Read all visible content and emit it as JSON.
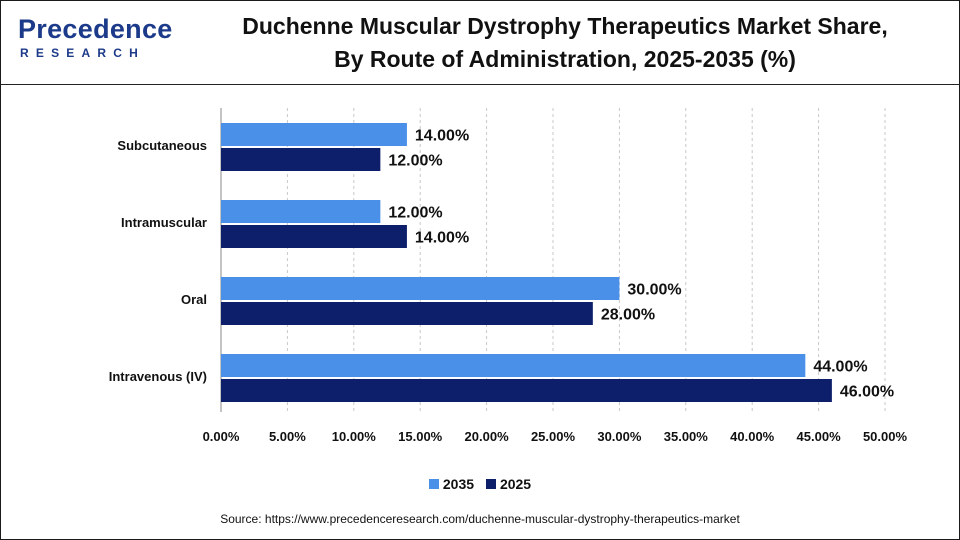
{
  "brand": {
    "name": "Precedence",
    "sub": "RESEARCH"
  },
  "title_line1": "Duchenne Muscular Dystrophy Therapeutics Market Share,",
  "title_line2": "By Route of Administration, 2025-2035 (%)",
  "source": "Source: https://www.precedenceresearch.com/duchenne-muscular-dystrophy-therapeutics-market",
  "chart_data": {
    "type": "bar",
    "orientation": "horizontal",
    "categories": [
      "Subcutaneous",
      "Intramuscular",
      "Oral",
      "Intravenous (IV)"
    ],
    "series": [
      {
        "name": "2035",
        "color": "#4a90e8",
        "values": [
          14,
          12,
          30,
          44
        ],
        "labels": [
          "14.00%",
          "12.00%",
          "30.00%",
          "44.00%"
        ]
      },
      {
        "name": "2025",
        "color": "#0d1f6b",
        "values": [
          12,
          14,
          28,
          46
        ],
        "labels": [
          "12.00%",
          "14.00%",
          "28.00%",
          "46.00%"
        ]
      }
    ],
    "xlim": [
      0,
      50
    ],
    "x_ticks": [
      "0.00%",
      "5.00%",
      "10.00%",
      "15.00%",
      "20.00%",
      "25.00%",
      "30.00%",
      "35.00%",
      "40.00%",
      "45.00%",
      "50.00%"
    ],
    "grid": "vertical dashed",
    "legend_position": "bottom"
  }
}
